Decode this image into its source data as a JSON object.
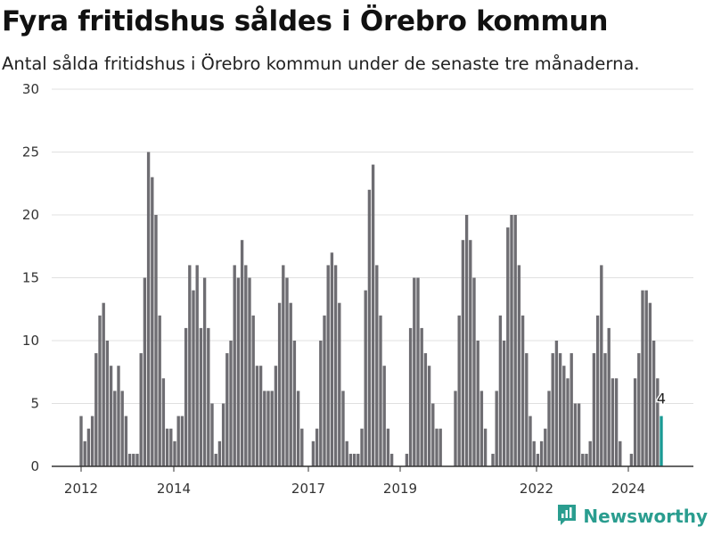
{
  "header": {
    "title": "Fyra fritidshus såldes i Örebro kommun",
    "subtitle": "Antal sålda fritidshus i Örebro kommun under de senaste tre månaderna."
  },
  "brand": {
    "name": "Newsworthy",
    "color": "#2a9d8f",
    "icon": "chart-bubble-icon"
  },
  "chart_data": {
    "type": "bar",
    "title": "Fyra fritidshus såldes i Örebro kommun",
    "subtitle": "Antal sålda fritidshus i Örebro kommun under de senaste tre månaderna.",
    "ylim": [
      0,
      30
    ],
    "yticks": [
      0,
      5,
      10,
      15,
      20,
      25,
      30
    ],
    "xticks": [
      "2012",
      "2014",
      "2017",
      "2019",
      "2022",
      "2024"
    ],
    "grid": true,
    "bar_color": "#6e6d72",
    "highlight_color": "#1a9a94",
    "highlight_label": "4",
    "values": [
      4,
      2,
      3,
      4,
      9,
      12,
      13,
      10,
      8,
      6,
      8,
      6,
      4,
      1,
      1,
      1,
      9,
      15,
      25,
      23,
      20,
      12,
      7,
      3,
      3,
      2,
      4,
      4,
      11,
      16,
      14,
      16,
      11,
      15,
      11,
      5,
      1,
      2,
      5,
      9,
      10,
      16,
      15,
      18,
      16,
      15,
      12,
      8,
      8,
      6,
      6,
      6,
      8,
      13,
      16,
      15,
      13,
      10,
      6,
      3,
      0,
      0,
      2,
      3,
      10,
      12,
      16,
      17,
      16,
      13,
      6,
      2,
      1,
      1,
      1,
      3,
      14,
      22,
      24,
      16,
      12,
      8,
      3,
      1,
      0,
      0,
      0,
      1,
      11,
      15,
      15,
      11,
      9,
      8,
      5,
      3,
      3,
      0,
      0,
      0,
      6,
      12,
      18,
      20,
      18,
      15,
      10,
      6,
      3,
      0,
      1,
      6,
      12,
      10,
      19,
      20,
      20,
      16,
      12,
      9,
      4,
      2,
      1,
      2,
      3,
      6,
      9,
      10,
      9,
      8,
      7,
      9,
      5,
      5,
      1,
      1,
      2,
      9,
      12,
      16,
      9,
      11,
      7,
      7,
      2,
      0,
      0,
      1,
      7,
      9,
      14,
      14,
      13,
      10,
      7,
      4
    ]
  }
}
